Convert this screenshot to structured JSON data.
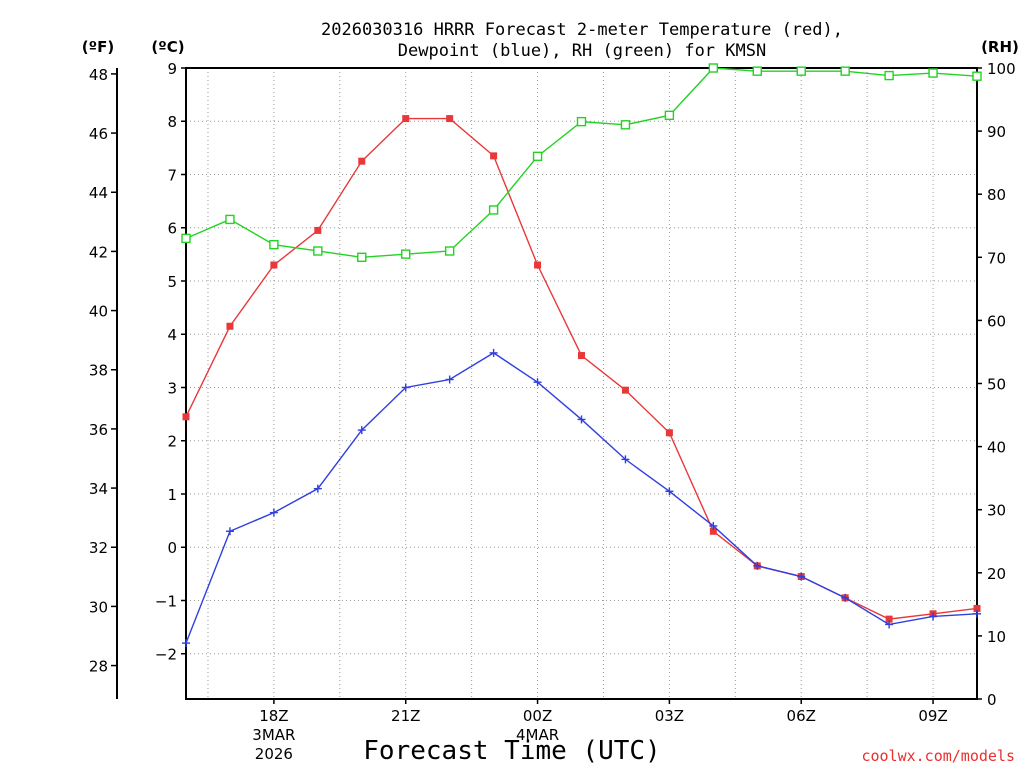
{
  "chart_data": {
    "type": "line",
    "title_line1": "2026030316 HRRR Forecast 2-meter Temperature (red),",
    "title_line2": "Dewpoint (blue), RH (green) for KMSN",
    "xlabel": "Forecast Time (UTC)",
    "credit": "coolwx.com/models",
    "left_unit_f": "(ºF)",
    "left_unit_c": "(ºC)",
    "right_unit": "(RH)",
    "x_hours": [
      16,
      17,
      18,
      19,
      20,
      21,
      22,
      23,
      24,
      25,
      26,
      27,
      28,
      29,
      30,
      31,
      32,
      33,
      34
    ],
    "xlim": [
      16,
      34
    ],
    "ylim_c": [
      -2.85,
      9.0
    ],
    "ylim_f": [
      26.87,
      48.2
    ],
    "ylim_rh": [
      0,
      100
    ],
    "x_ticks": [
      {
        "x": 18,
        "label": "18Z",
        "sub1": "3MAR",
        "sub2": "2026"
      },
      {
        "x": 21,
        "label": "21Z"
      },
      {
        "x": 24,
        "label": "00Z",
        "sub1": "4MAR"
      },
      {
        "x": 27,
        "label": "03Z"
      },
      {
        "x": 30,
        "label": "06Z"
      },
      {
        "x": 33,
        "label": "09Z"
      }
    ],
    "c_ticks": [
      -2,
      -1,
      0,
      1,
      2,
      3,
      4,
      5,
      6,
      7,
      8,
      9
    ],
    "f_ticks": [
      28,
      30,
      32,
      34,
      36,
      38,
      40,
      42,
      44,
      46,
      48
    ],
    "rh_ticks": [
      0,
      10,
      20,
      30,
      40,
      50,
      60,
      70,
      80,
      90,
      100
    ],
    "series": [
      {
        "name": "Temperature",
        "unit": "C",
        "color": "#e8383a",
        "marker": "filled-square",
        "values": [
          2.45,
          4.15,
          5.3,
          5.95,
          7.25,
          8.05,
          8.05,
          7.35,
          5.3,
          3.6,
          2.95,
          2.15,
          0.3,
          -0.35,
          -0.55,
          -0.95,
          -1.35,
          -1.25,
          -1.15
        ]
      },
      {
        "name": "Dewpoint",
        "unit": "C",
        "color": "#2f3fe0",
        "marker": "plus",
        "values": [
          -1.8,
          0.3,
          0.65,
          1.1,
          2.2,
          3.0,
          3.15,
          3.65,
          3.1,
          2.4,
          1.65,
          1.05,
          0.4,
          -0.35,
          -0.55,
          -0.95,
          -1.45,
          -1.3,
          -1.25
        ]
      },
      {
        "name": "RH",
        "unit": "%",
        "color": "#22d322",
        "marker": "open-square",
        "values": [
          73,
          76,
          72,
          71,
          70,
          70.5,
          71,
          77.5,
          86,
          91.5,
          91,
          92.5,
          100,
          99.5,
          99.5,
          99.5,
          98.8,
          99.2,
          98.7
        ]
      }
    ]
  }
}
